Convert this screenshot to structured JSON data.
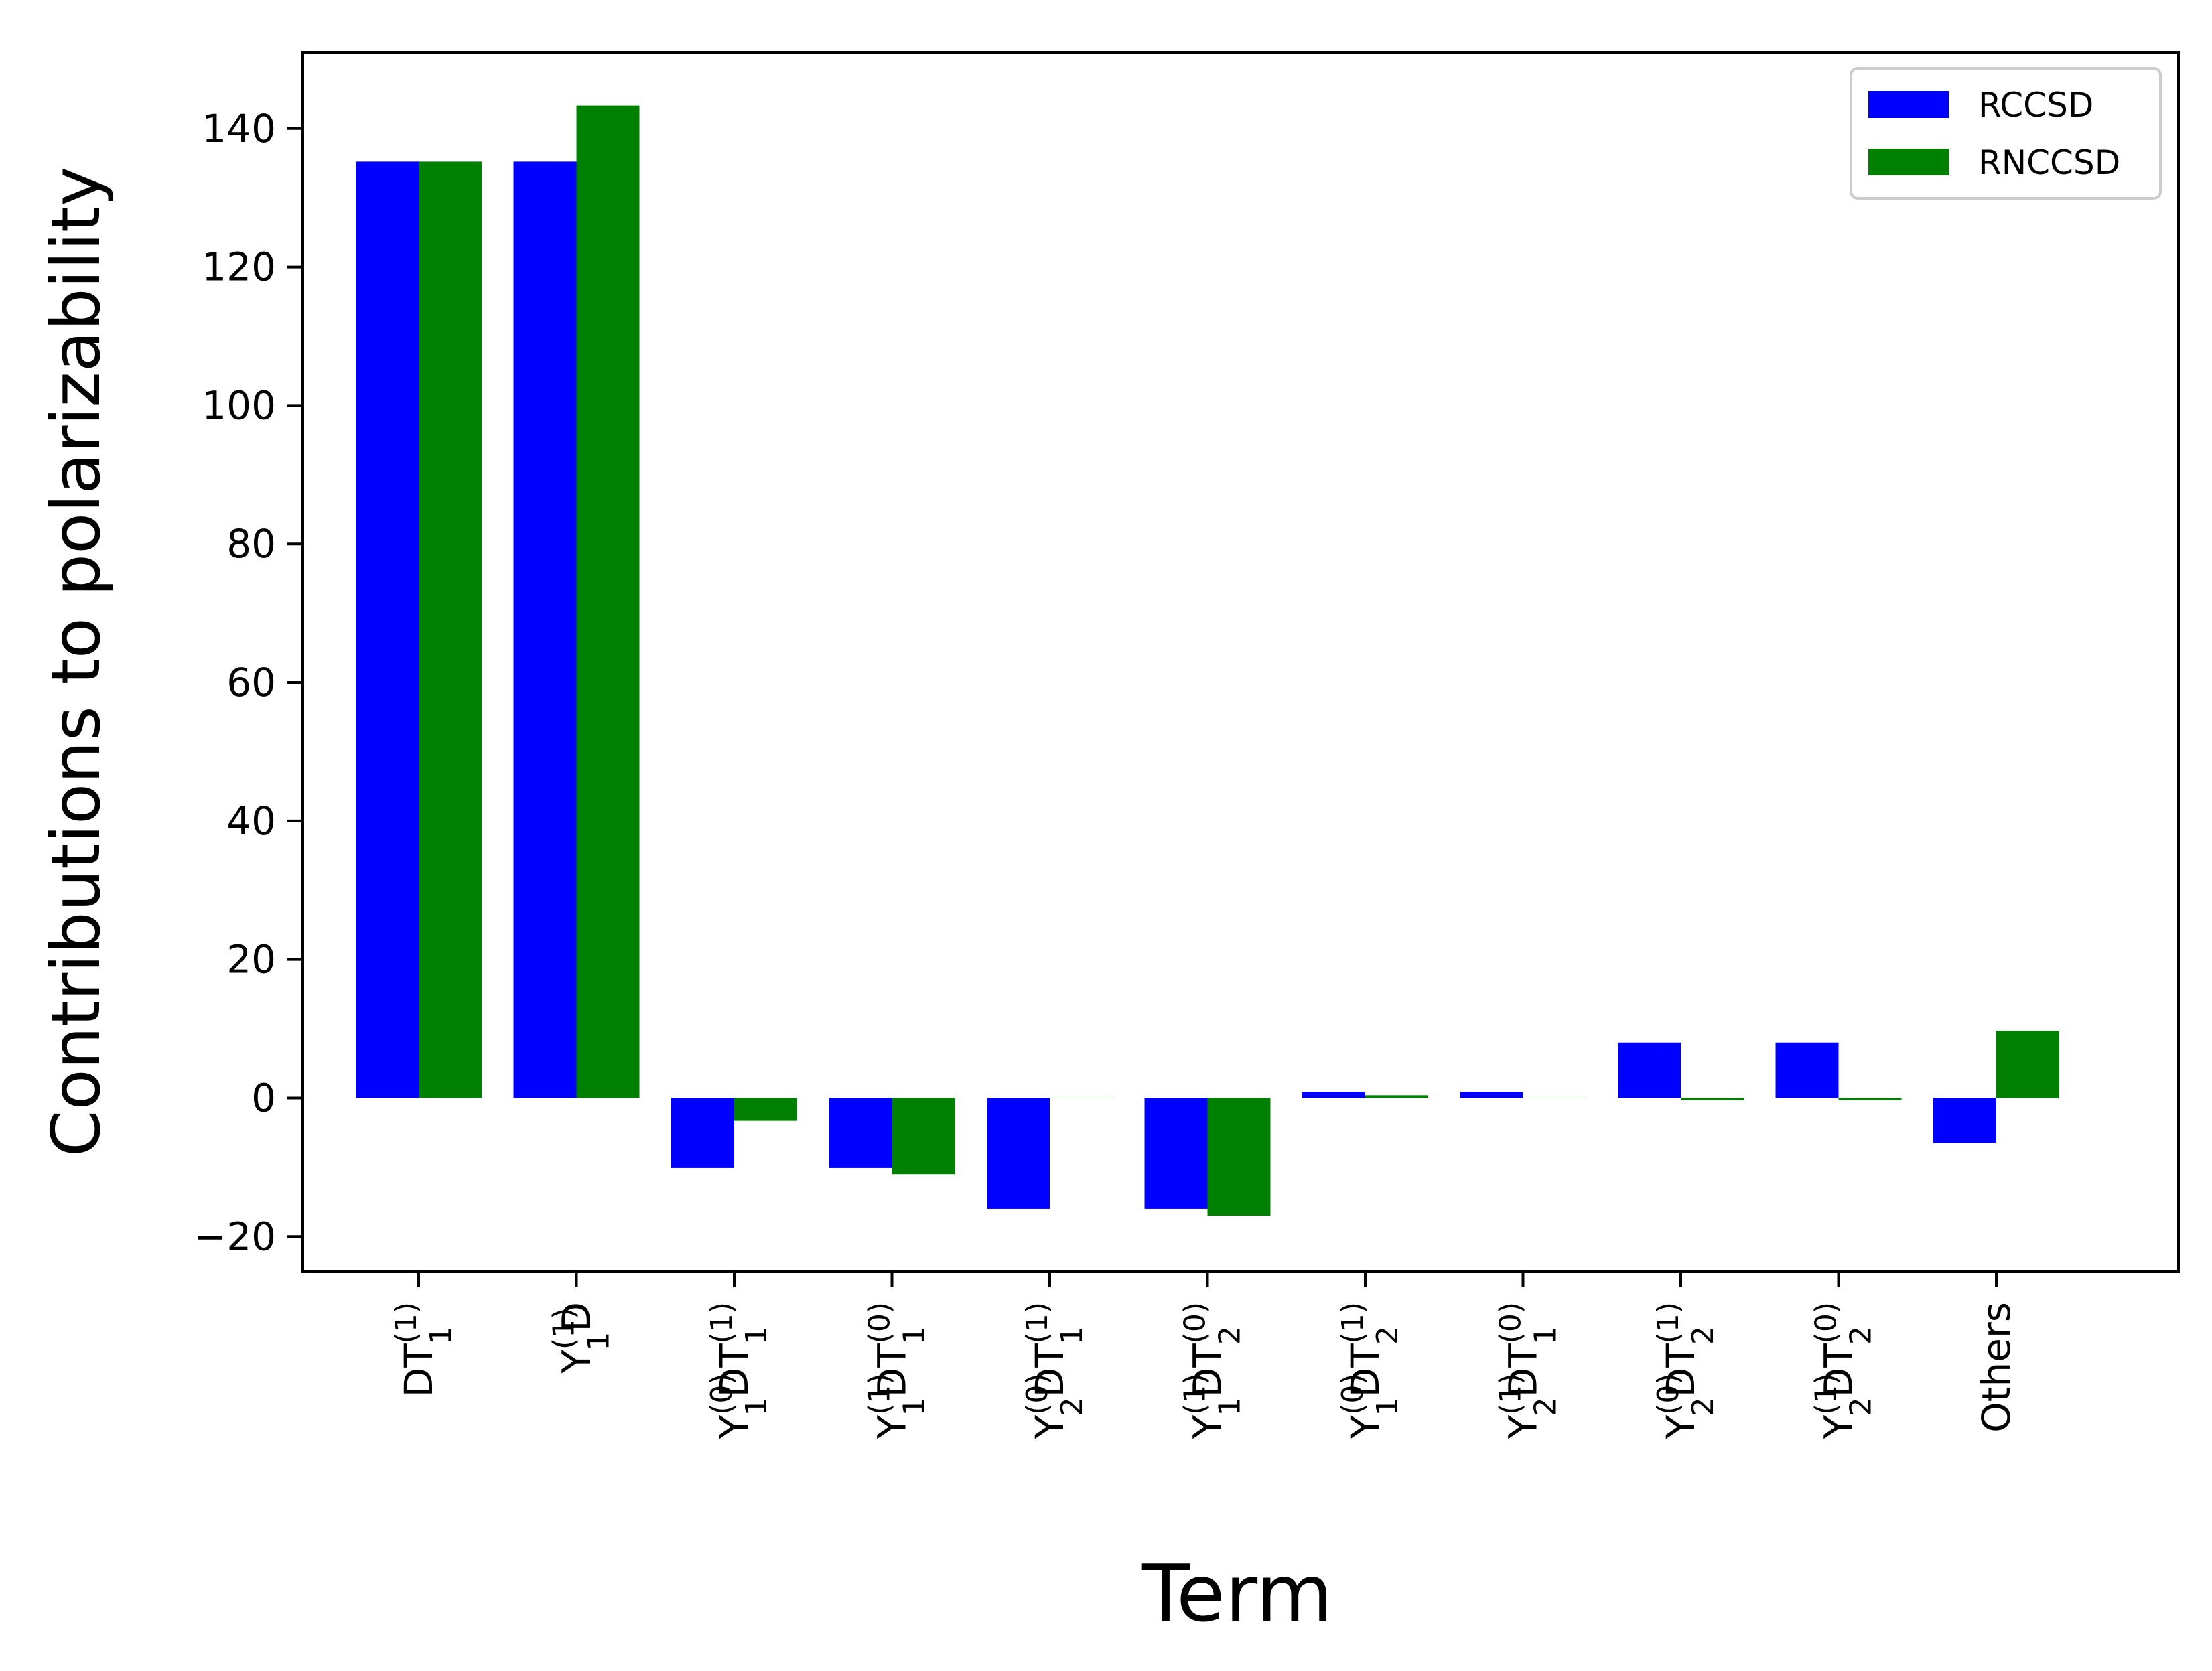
{
  "chart_data": {
    "type": "bar",
    "xlabel": "Term",
    "ylabel": "Contributions to polarizability",
    "ylim": [
      -25,
      151
    ],
    "yticks": [
      -20,
      0,
      20,
      40,
      60,
      80,
      100,
      120,
      140
    ],
    "grid": false,
    "legend_position": "top-right",
    "categories": [
      {
        "base": "DT",
        "parts": [
          {
            "s": "1",
            "p": "1"
          }
        ],
        "tail": ""
      },
      {
        "base": "Y",
        "parts": [
          {
            "s": "1",
            "p": "1"
          }
        ],
        "tail": "D"
      },
      {
        "base": "Y",
        "parts": [
          {
            "s": "1",
            "p": "0"
          }
        ],
        "tail": "DT",
        "tail_parts": [
          {
            "s": "1",
            "p": "1"
          }
        ]
      },
      {
        "base": "Y",
        "parts": [
          {
            "s": "1",
            "p": "1"
          }
        ],
        "tail": "DT",
        "tail_parts": [
          {
            "s": "1",
            "p": "0"
          }
        ]
      },
      {
        "base": "Y",
        "parts": [
          {
            "s": "2",
            "p": "0"
          }
        ],
        "tail": "DT",
        "tail_parts": [
          {
            "s": "1",
            "p": "1"
          }
        ]
      },
      {
        "base": "Y",
        "parts": [
          {
            "s": "1",
            "p": "1"
          }
        ],
        "tail": "DT",
        "tail_parts": [
          {
            "s": "2",
            "p": "0"
          }
        ]
      },
      {
        "base": "Y",
        "parts": [
          {
            "s": "1",
            "p": "0"
          }
        ],
        "tail": "DT",
        "tail_parts": [
          {
            "s": "2",
            "p": "1"
          }
        ]
      },
      {
        "base": "Y",
        "parts": [
          {
            "s": "2",
            "p": "1"
          }
        ],
        "tail": "DT",
        "tail_parts": [
          {
            "s": "1",
            "p": "0"
          }
        ]
      },
      {
        "base": "Y",
        "parts": [
          {
            "s": "2",
            "p": "0"
          }
        ],
        "tail": "DT",
        "tail_parts": [
          {
            "s": "2",
            "p": "1"
          }
        ]
      },
      {
        "base": "Y",
        "parts": [
          {
            "s": "2",
            "p": "1"
          }
        ],
        "tail": "DT",
        "tail_parts": [
          {
            "s": "2",
            "p": "0"
          }
        ]
      },
      {
        "base": "Others",
        "parts": [],
        "tail": ""
      }
    ],
    "series": [
      {
        "name": "RCCSD",
        "color": "#0000ff",
        "values": [
          135.2,
          135.2,
          -10.1,
          -10.1,
          -16.0,
          -16.0,
          0.9,
          0.9,
          8.0,
          8.0,
          -6.5
        ]
      },
      {
        "name": "RNCCSD",
        "color": "#008000",
        "values": [
          135.2,
          143.3,
          -3.3,
          -11.0,
          0.0,
          -17.0,
          0.4,
          0.0,
          -0.3,
          -0.3,
          9.7
        ]
      }
    ]
  }
}
